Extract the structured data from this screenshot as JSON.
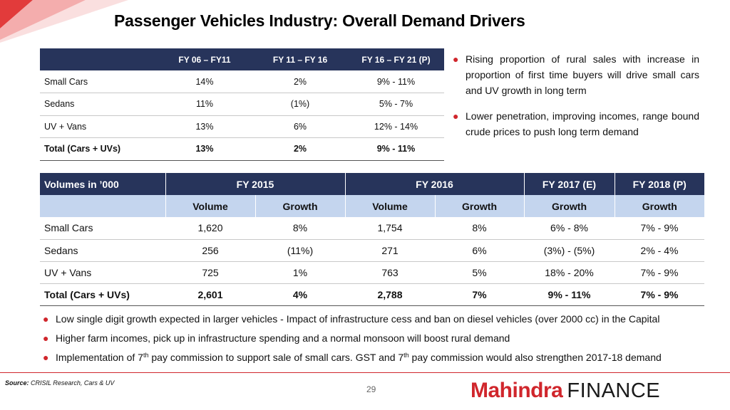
{
  "title": "Passenger Vehicles Industry: Overall Demand Drivers",
  "table1": {
    "headers": [
      "",
      "FY 06 – FY11",
      "FY 11 – FY 16",
      "FY 16 – FY 21 (P)"
    ],
    "rows": [
      [
        "Small Cars",
        "14%",
        "2%",
        "9% - 11%"
      ],
      [
        "Sedans",
        "11%",
        "(1%)",
        "5% - 7%"
      ],
      [
        "UV + Vans",
        "13%",
        "6%",
        "12% - 14%"
      ]
    ],
    "total": [
      "Total (Cars + UVs)",
      "13%",
      "2%",
      "9% - 11%"
    ]
  },
  "right_bullets": [
    "Rising proportion of rural sales with increase in proportion of first time buyers will drive small cars and UV growth in long term",
    "Lower penetration, improving incomes, range bound crude prices to push long term demand"
  ],
  "table2": {
    "header1": [
      "Volumes in ’000",
      "FY 2015",
      "FY 2016",
      "FY 2017 (E)",
      "FY 2018 (P)"
    ],
    "header2": [
      "Volume",
      "Growth",
      "Volume",
      "Growth",
      "Growth",
      "Growth"
    ],
    "rows": [
      [
        "Small Cars",
        "1,620",
        "8%",
        "1,754",
        "8%",
        "6% - 8%",
        "7% - 9%"
      ],
      [
        "Sedans",
        "256",
        "(11%)",
        "271",
        "6%",
        "(3%) - (5%)",
        "2% - 4%"
      ],
      [
        "UV + Vans",
        "725",
        "1%",
        "763",
        "5%",
        "18% - 20%",
        "7% - 9%"
      ]
    ],
    "total": [
      "Total (Cars + UVs)",
      "2,601",
      "4%",
      "2,788",
      "7%",
      "9% - 11%",
      "7% - 9%"
    ]
  },
  "bottom_bullets": {
    "b1": "Low single digit growth expected in larger vehicles - Impact of infrastructure cess and ban on diesel vehicles (over 2000 cc) in the Capital",
    "b2": "Higher farm incomes, pick up in infrastructure spending and a normal monsoon will boost rural demand",
    "b3": {
      "p1": "Implementation of 7",
      "s1": "th",
      "p2": " pay commission to support sale of small cars. GST and 7",
      "s2": "th",
      "p3": " pay commission would also strengthen 2017-18 demand"
    }
  },
  "source_label": "Source:",
  "source_value": "CRISIL Research, Cars & UV",
  "page_number": "29",
  "logo": {
    "brand": "Mahindra",
    "suffix": "FINANCE"
  },
  "colors": {
    "navy": "#27345b",
    "light_blue": "#c4d5ee",
    "red": "#d0262c"
  },
  "icons": [
    "bullet-dot",
    "corner-stripes"
  ]
}
